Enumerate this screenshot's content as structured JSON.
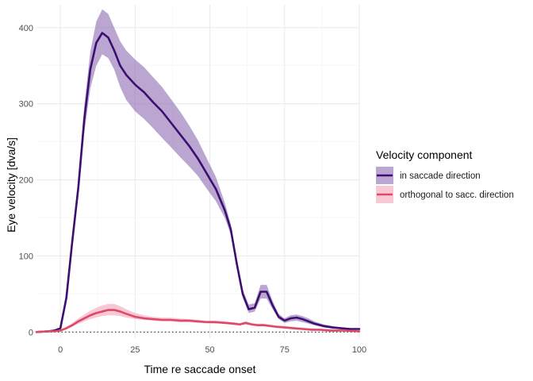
{
  "chart_data": {
    "type": "line",
    "title": "",
    "xlabel": "Time re saccade onset",
    "ylabel": "Eye velocity [dva/s]",
    "xlim": [
      -8,
      100
    ],
    "ylim": [
      -8,
      430
    ],
    "x_ticks": [
      0,
      25,
      50,
      75,
      100
    ],
    "y_ticks": [
      0,
      100,
      200,
      300,
      400
    ],
    "grid": true,
    "zero_reference_line": {
      "y": 0,
      "style": "dotted"
    },
    "legend": {
      "title": "Velocity component",
      "position": "right",
      "entries": [
        "in saccade direction",
        "orthogonal to sacc. direction"
      ]
    },
    "series": [
      {
        "name": "in saccade direction",
        "color": "#3b0f70",
        "band_color": "#8c6bb1",
        "x": [
          -8,
          -4,
          -2,
          0,
          2,
          4,
          6,
          8,
          10,
          12,
          14,
          16,
          18,
          20,
          22,
          25,
          28,
          31,
          34,
          37,
          40,
          43,
          46,
          49,
          52,
          55,
          57,
          59,
          61,
          63,
          65,
          67,
          69,
          71,
          73,
          75,
          77,
          79,
          81,
          83,
          85,
          88,
          91,
          94,
          97,
          100
        ],
        "y": [
          0,
          1,
          2,
          5,
          45,
          120,
          190,
          280,
          345,
          380,
          393,
          387,
          370,
          350,
          338,
          325,
          315,
          302,
          290,
          275,
          260,
          245,
          228,
          208,
          188,
          160,
          135,
          90,
          50,
          30,
          32,
          53,
          53,
          35,
          20,
          15,
          18,
          19,
          17,
          14,
          11,
          8,
          6,
          5,
          4,
          4
        ],
        "lower": [
          0,
          1,
          2,
          4,
          42,
          112,
          178,
          262,
          320,
          350,
          365,
          360,
          345,
          322,
          305,
          290,
          280,
          268,
          255,
          243,
          230,
          218,
          205,
          188,
          172,
          150,
          128,
          84,
          45,
          25,
          27,
          44,
          44,
          30,
          17,
          12,
          14,
          15,
          13,
          11,
          9,
          6,
          5,
          4,
          3,
          3
        ],
        "upper": [
          1,
          2,
          3,
          6,
          48,
          128,
          202,
          298,
          368,
          408,
          424,
          418,
          400,
          382,
          370,
          358,
          348,
          335,
          322,
          306,
          290,
          272,
          252,
          228,
          204,
          170,
          142,
          96,
          56,
          36,
          38,
          62,
          62,
          41,
          24,
          18,
          22,
          23,
          21,
          18,
          14,
          10,
          8,
          6,
          5,
          5
        ]
      },
      {
        "name": "orthogonal to sacc. direction",
        "color": "#de4968",
        "band_color": "#f4a5b7",
        "x": [
          -8,
          -4,
          -2,
          0,
          2,
          4,
          6,
          8,
          10,
          12,
          14,
          16,
          18,
          20,
          22,
          25,
          28,
          31,
          34,
          37,
          40,
          43,
          46,
          49,
          52,
          55,
          58,
          60,
          62,
          64,
          66,
          68,
          70,
          72,
          75,
          78,
          81,
          84,
          87,
          90,
          95,
          100
        ],
        "y": [
          0,
          1,
          1,
          2,
          5,
          9,
          14,
          18,
          22,
          25,
          27,
          29,
          29,
          27,
          24,
          20,
          18,
          17,
          16,
          16,
          15,
          15,
          14,
          13,
          13,
          12,
          11,
          10,
          12,
          10,
          9,
          9,
          8,
          7,
          6,
          5,
          4,
          3,
          3,
          2,
          2,
          1
        ],
        "lower": [
          0,
          0,
          1,
          1,
          4,
          7,
          11,
          14,
          17,
          19,
          21,
          22,
          22,
          21,
          19,
          17,
          16,
          15,
          14,
          14,
          13,
          13,
          12,
          12,
          11,
          11,
          10,
          9,
          10,
          9,
          8,
          8,
          7,
          6,
          5,
          4,
          3,
          3,
          2,
          2,
          1,
          1
        ],
        "upper": [
          1,
          1,
          2,
          3,
          7,
          12,
          18,
          23,
          28,
          32,
          35,
          37,
          37,
          34,
          30,
          25,
          22,
          20,
          19,
          19,
          18,
          17,
          16,
          15,
          15,
          14,
          13,
          12,
          14,
          12,
          11,
          11,
          10,
          9,
          8,
          7,
          6,
          5,
          4,
          4,
          3,
          2
        ]
      }
    ]
  }
}
